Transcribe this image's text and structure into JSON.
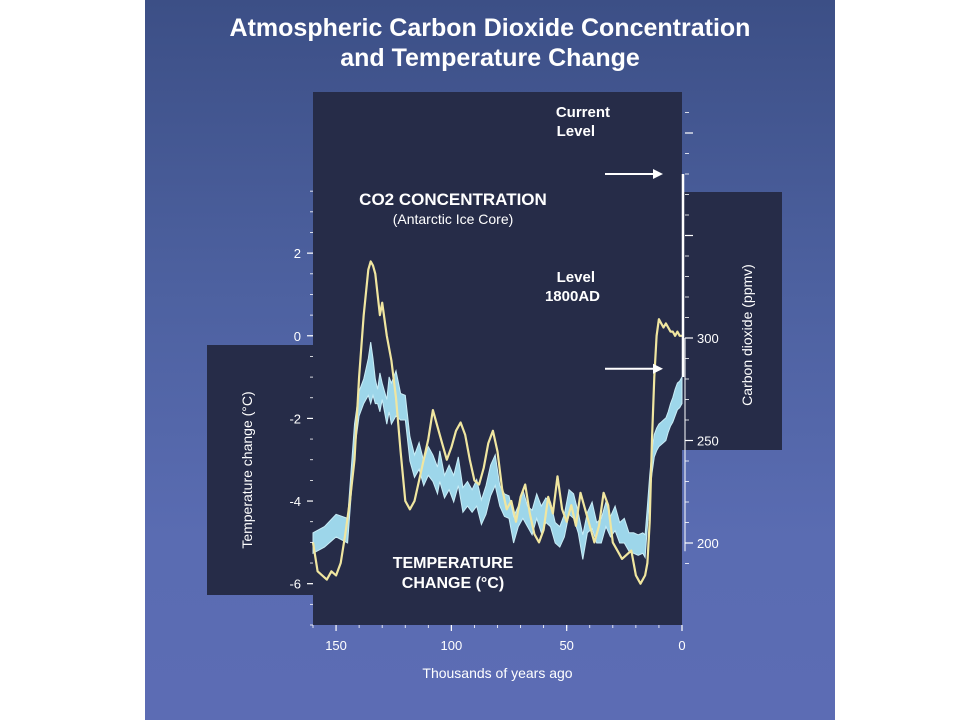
{
  "title_line1": "Atmospheric Carbon Dioxide Concentration",
  "title_line2": "and Temperature Change",
  "colors": {
    "co2_band": "#9dd6ea",
    "temperature_line": "#f0e6a0",
    "plot_background": "#262c48",
    "page_background": "#4d5fa0"
  },
  "chart_data": {
    "type": "line",
    "xlabel": "Thousands of years ago",
    "x_ticks": [
      "150",
      "100",
      "50",
      "0"
    ],
    "xlim": [
      160,
      0
    ],
    "left_axis": {
      "label": "Temperature change (°C)",
      "ticks": [
        "2",
        "0",
        "-2",
        "-4",
        "-6"
      ],
      "ylim": [
        -7,
        5.9
      ]
    },
    "right_axis": {
      "label": "Carbon dioxide (ppmv)",
      "ticks": [
        "300",
        "250",
        "200"
      ],
      "ylim": [
        160,
        420
      ]
    },
    "annotations": {
      "co2_title": "CO2 CONCENTRATION",
      "co2_title_subscript": "2",
      "co2_subtitle": "(Antarctic Ice Core)",
      "temp_title_1": "TEMPERATURE",
      "temp_title_2": "CHANGE (°C)",
      "current_1": "Current",
      "current_2": "Level",
      "level_1800_1": "Level",
      "level_1800_2": "1800AD"
    },
    "series": [
      {
        "name": "CO2 CONCENTRATION",
        "axis": "right",
        "x": [
          160,
          155,
          150,
          145,
          142,
          140,
          138,
          137,
          136,
          135,
          134,
          133,
          132,
          131,
          130,
          128,
          127,
          126,
          124,
          122,
          120,
          118,
          116,
          114,
          112,
          110,
          108,
          106,
          105,
          103,
          101,
          99,
          97,
          95,
          93,
          91,
          89,
          87,
          85,
          83,
          81,
          79,
          77,
          75,
          73,
          71,
          69,
          67,
          65,
          63,
          61,
          59,
          57,
          55,
          53,
          51,
          49,
          47,
          45,
          43,
          41,
          39,
          37,
          35,
          33,
          31,
          29,
          27,
          25,
          23,
          21,
          19,
          17,
          16,
          15,
          14,
          13,
          12,
          11,
          10,
          9,
          8,
          7,
          6,
          5,
          4,
          3,
          2,
          1,
          0
        ],
        "low": [
          195,
          198,
          203,
          200,
          245,
          262,
          268,
          270,
          272,
          268,
          272,
          268,
          268,
          264,
          270,
          258,
          264,
          258,
          262,
          260,
          260,
          240,
          232,
          236,
          228,
          233,
          230,
          224,
          230,
          222,
          226,
          220,
          228,
          215,
          218,
          215,
          218,
          209,
          214,
          223,
          228,
          218,
          213,
          212,
          200,
          208,
          212,
          208,
          204,
          212,
          205,
          210,
          208,
          200,
          198,
          203,
          214,
          212,
          205,
          192,
          205,
          207,
          200,
          200,
          208,
          203,
          206,
          200,
          200,
          196,
          195,
          194,
          195,
          193,
          208,
          223,
          234,
          242,
          245,
          247,
          248,
          249,
          250,
          254,
          257,
          259,
          262,
          265,
          266,
          268
        ],
        "high": [
          205,
          208,
          214,
          212,
          258,
          274,
          280,
          285,
          290,
          298,
          290,
          280,
          275,
          283,
          278,
          270,
          281,
          278,
          284,
          273,
          272,
          252,
          243,
          249,
          240,
          247,
          243,
          237,
          245,
          233,
          238,
          233,
          242,
          227,
          230,
          226,
          231,
          221,
          228,
          238,
          243,
          228,
          224,
          223,
          213,
          218,
          226,
          218,
          216,
          224,
          218,
          222,
          220,
          210,
          208,
          214,
          226,
          224,
          215,
          204,
          215,
          220,
          210,
          212,
          220,
          213,
          218,
          210,
          212,
          205,
          205,
          204,
          205,
          204,
          218,
          233,
          245,
          253,
          256,
          258,
          259,
          260,
          261,
          264,
          268,
          271,
          275,
          278,
          279,
          281
        ]
      },
      {
        "name": "TEMPERATURE CHANGE (°C)",
        "axis": "left",
        "x": [
          160,
          158,
          156,
          154,
          152,
          150,
          148,
          146,
          144,
          142,
          140,
          138,
          136,
          135,
          134,
          133,
          132,
          131,
          130,
          128,
          126,
          124,
          122,
          120,
          118,
          116,
          114,
          112,
          110,
          108,
          106,
          104,
          102,
          100,
          98,
          96,
          94,
          92,
          90,
          88,
          86,
          84,
          82,
          80,
          78,
          76,
          74,
          72,
          70,
          68,
          66,
          64,
          62,
          60,
          58,
          56,
          54,
          52,
          50,
          48,
          46,
          44,
          42,
          40,
          38,
          36,
          34,
          32,
          30,
          28,
          26,
          24,
          22,
          20,
          18,
          16,
          15,
          14,
          13,
          12,
          11,
          10,
          9,
          8,
          7,
          6,
          5,
          4,
          3,
          2,
          1,
          0
        ],
        "values": [
          -5.0,
          -5.7,
          -5.8,
          -5.9,
          -5.7,
          -5.8,
          -5.5,
          -4.8,
          -4.0,
          -3.0,
          -1.0,
          0.5,
          1.6,
          1.8,
          1.7,
          1.5,
          1.0,
          0.5,
          0.8,
          0.0,
          -0.6,
          -1.5,
          -2.8,
          -4.0,
          -4.2,
          -4.0,
          -3.5,
          -3.0,
          -2.5,
          -1.8,
          -2.2,
          -2.6,
          -3.0,
          -2.7,
          -2.3,
          -2.1,
          -2.4,
          -3.0,
          -3.5,
          -3.6,
          -3.2,
          -2.6,
          -2.3,
          -2.8,
          -3.7,
          -4.2,
          -4.0,
          -4.5,
          -3.9,
          -3.6,
          -4.3,
          -4.8,
          -5.0,
          -4.7,
          -3.9,
          -4.3,
          -3.4,
          -4.2,
          -4.5,
          -4.1,
          -4.6,
          -3.8,
          -4.2,
          -4.6,
          -5.0,
          -4.6,
          -3.8,
          -4.1,
          -5.0,
          -5.2,
          -5.4,
          -5.3,
          -5.2,
          -5.8,
          -6.0,
          -5.8,
          -5.5,
          -4.5,
          -2.5,
          -1.0,
          0.0,
          0.4,
          0.3,
          0.2,
          0.3,
          0.2,
          0.1,
          0.1,
          0.0,
          0.1,
          0.0,
          0.0
        ]
      }
    ]
  }
}
